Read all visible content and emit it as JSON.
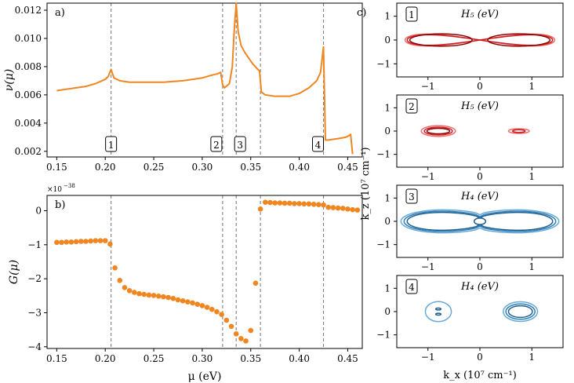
{
  "colors": {
    "orange": "#f0861f",
    "red_dark": "#8b0000",
    "red_mid": "#cc1f24",
    "red_light": "#ef6b6b",
    "blue_dark": "#1f5f8f",
    "blue_mid": "#2f7fb8",
    "blue_light": "#6aaad6",
    "dashed": "#808080"
  },
  "chart_data": [
    {
      "id": "a",
      "panel_label": "a)",
      "type": "line",
      "xlabel": "",
      "ylabel": "ν(μ)",
      "xlim": [
        0.14,
        0.465
      ],
      "ylim": [
        0.0016,
        0.0125
      ],
      "xticks": [
        0.15,
        0.2,
        0.25,
        0.3,
        0.35,
        0.4,
        0.45
      ],
      "xtick_labels": [
        "0.15",
        "0.20",
        "0.25",
        "0.30",
        "0.35",
        "0.40",
        "0.45"
      ],
      "yticks": [
        0.002,
        0.004,
        0.006,
        0.008,
        0.01,
        0.012
      ],
      "ytick_labels": [
        "0.002",
        "0.004",
        "0.006",
        "0.008",
        "0.010",
        "0.012"
      ],
      "vlines": [
        0.206,
        0.321,
        0.335,
        0.36,
        0.425
      ],
      "markers": [
        {
          "label": "1",
          "x": 0.206
        },
        {
          "label": "2",
          "x": 0.321
        },
        {
          "label": "3",
          "x": 0.335
        },
        {
          "label": "4",
          "x": 0.425
        }
      ],
      "series": [
        {
          "name": "nu",
          "x": [
            0.15,
            0.16,
            0.17,
            0.18,
            0.19,
            0.2,
            0.203,
            0.206,
            0.209,
            0.215,
            0.225,
            0.24,
            0.26,
            0.28,
            0.3,
            0.31,
            0.316,
            0.319,
            0.321,
            0.323,
            0.328,
            0.331,
            0.333,
            0.335,
            0.337,
            0.34,
            0.344,
            0.348,
            0.352,
            0.356,
            0.359,
            0.361,
            0.365,
            0.375,
            0.39,
            0.4,
            0.41,
            0.418,
            0.422,
            0.424,
            0.425,
            0.427,
            0.43,
            0.44,
            0.448,
            0.451,
            0.453,
            0.455
          ],
          "y": [
            0.0063,
            0.0064,
            0.0065,
            0.0066,
            0.0068,
            0.0071,
            0.0073,
            0.0078,
            0.0072,
            0.007,
            0.0069,
            0.0069,
            0.0069,
            0.007,
            0.0072,
            0.0074,
            0.0075,
            0.0076,
            0.0067,
            0.0065,
            0.0068,
            0.008,
            0.0106,
            0.0125,
            0.0105,
            0.0095,
            0.009,
            0.0086,
            0.0082,
            0.0079,
            0.0077,
            0.0062,
            0.006,
            0.0059,
            0.0059,
            0.0061,
            0.0065,
            0.007,
            0.0076,
            0.0088,
            0.0094,
            0.0028,
            0.0028,
            0.0029,
            0.003,
            0.0031,
            0.0032,
            0.0018
          ]
        }
      ]
    },
    {
      "id": "b",
      "panel_label": "b)",
      "type": "scatter",
      "xlabel": "μ (eV)",
      "ylabel": "G(μ)",
      "scale_label": "×10",
      "scale_exp": "−38",
      "xlim": [
        0.14,
        0.465
      ],
      "ylim": [
        -4.05,
        0.45
      ],
      "xticks": [
        0.15,
        0.2,
        0.25,
        0.3,
        0.35,
        0.4,
        0.45
      ],
      "xtick_labels": [
        "0.15",
        "0.20",
        "0.25",
        "0.30",
        "0.35",
        "0.40",
        "0.45"
      ],
      "yticks": [
        0,
        -1,
        -2,
        -3,
        -4
      ],
      "ytick_labels": [
        "0",
        "−1",
        "−2",
        "−3",
        "−4"
      ],
      "vlines": [
        0.206,
        0.321,
        0.335,
        0.36,
        0.425
      ],
      "series": [
        {
          "name": "G",
          "x": [
            0.15,
            0.155,
            0.16,
            0.165,
            0.17,
            0.175,
            0.18,
            0.185,
            0.19,
            0.195,
            0.2,
            0.205,
            0.21,
            0.215,
            0.22,
            0.225,
            0.23,
            0.235,
            0.24,
            0.245,
            0.25,
            0.255,
            0.26,
            0.265,
            0.27,
            0.275,
            0.28,
            0.285,
            0.29,
            0.295,
            0.3,
            0.305,
            0.31,
            0.315,
            0.32,
            0.325,
            0.33,
            0.335,
            0.34,
            0.345,
            0.35,
            0.355,
            0.36,
            0.365,
            0.37,
            0.375,
            0.38,
            0.385,
            0.39,
            0.395,
            0.4,
            0.405,
            0.41,
            0.415,
            0.42,
            0.425,
            0.43,
            0.435,
            0.44,
            0.445,
            0.45,
            0.455,
            0.46
          ],
          "y": [
            -0.93,
            -0.93,
            -0.92,
            -0.92,
            -0.91,
            -0.9,
            -0.9,
            -0.89,
            -0.88,
            -0.88,
            -0.88,
            -0.98,
            -1.68,
            -2.05,
            -2.26,
            -2.35,
            -2.4,
            -2.44,
            -2.46,
            -2.48,
            -2.49,
            -2.51,
            -2.53,
            -2.55,
            -2.58,
            -2.62,
            -2.65,
            -2.68,
            -2.71,
            -2.75,
            -2.79,
            -2.84,
            -2.9,
            -2.97,
            -3.05,
            -3.22,
            -3.4,
            -3.62,
            -3.76,
            -3.83,
            -3.52,
            -2.13,
            0.05,
            0.25,
            0.24,
            0.23,
            0.23,
            0.22,
            0.22,
            0.21,
            0.21,
            0.2,
            0.2,
            0.19,
            0.18,
            0.17,
            0.1,
            0.09,
            0.08,
            0.07,
            0.05,
            0.03,
            0.02
          ]
        }
      ]
    },
    {
      "id": "c1",
      "panel_label": "c)",
      "type": "contour",
      "number": "1",
      "title": "H₅ (eV)",
      "xlim": [
        -1.6,
        1.6
      ],
      "ylim": [
        -1.55,
        1.55
      ],
      "xticks": [
        -1,
        0,
        1
      ],
      "xtick_labels": [
        "−1",
        "0",
        "1"
      ],
      "yticks": [
        1,
        0,
        -1
      ],
      "ytick_labels": [
        "1",
        "0",
        "−1"
      ],
      "colormap": "reds",
      "contours": [
        {
          "kind": "figure8",
          "a": 1.44,
          "b": 0.5,
          "level": "outer"
        },
        {
          "kind": "figure8",
          "a": 1.4,
          "b": 0.44,
          "level": "mid"
        },
        {
          "kind": "lobes",
          "cx": 0.75,
          "rx": 0.6,
          "ry": 0.26,
          "level": "inner"
        }
      ]
    },
    {
      "id": "c2",
      "type": "contour",
      "number": "2",
      "title": "H₅ (eV)",
      "xlim": [
        -1.6,
        1.6
      ],
      "ylim": [
        -1.55,
        1.55
      ],
      "xticks": [
        -1,
        0,
        1
      ],
      "xtick_labels": [
        "−1",
        "0",
        "1"
      ],
      "yticks": [
        1,
        0,
        -1
      ],
      "ytick_labels": [
        "1",
        "0",
        "−1"
      ],
      "colormap": "reds",
      "contours": [
        {
          "kind": "ellipse",
          "cx": -0.8,
          "cy": 0,
          "rx": 0.33,
          "ry": 0.23,
          "level": "outer"
        },
        {
          "kind": "ellipse",
          "cx": -0.8,
          "cy": 0,
          "rx": 0.27,
          "ry": 0.17,
          "level": "mid"
        },
        {
          "kind": "ellipse",
          "cx": -0.8,
          "cy": 0,
          "rx": 0.22,
          "ry": 0.12,
          "level": "inner"
        },
        {
          "kind": "ellipse",
          "cx": 0.75,
          "cy": 0,
          "rx": 0.2,
          "ry": 0.1,
          "level": "outer"
        },
        {
          "kind": "ellipse",
          "cx": 0.75,
          "cy": 0,
          "rx": 0.12,
          "ry": 0.06,
          "level": "mid"
        }
      ]
    },
    {
      "id": "c3",
      "type": "contour",
      "number": "3",
      "title": "H₄ (eV)",
      "xlim": [
        -1.6,
        1.6
      ],
      "ylim": [
        -1.55,
        1.55
      ],
      "xticks": [
        -1,
        0,
        1
      ],
      "xtick_labels": [
        "−1",
        "0",
        "1"
      ],
      "yticks": [
        1,
        0,
        -1
      ],
      "ytick_labels": [
        "1",
        "0",
        "−1"
      ],
      "ylabel": "k_z (10⁷ cm⁻¹)",
      "colormap": "blues",
      "contours": [
        {
          "kind": "peanut",
          "a": 1.52,
          "b": 0.7,
          "neck": 0.28,
          "level": "outer"
        },
        {
          "kind": "peanut",
          "a": 1.46,
          "b": 0.64,
          "neck": 0.2,
          "level": "mid"
        },
        {
          "kind": "peanut",
          "a": 1.4,
          "b": 0.58,
          "neck": 0.14,
          "level": "inner"
        },
        {
          "kind": "ellipse",
          "cx": 0,
          "cy": 0,
          "rx": 0.11,
          "ry": 0.14,
          "level": "inner"
        }
      ]
    },
    {
      "id": "c4",
      "type": "contour",
      "number": "4",
      "title": "H₄ (eV)",
      "xlim": [
        -1.6,
        1.6
      ],
      "ylim": [
        -1.55,
        1.55
      ],
      "xticks": [
        -1,
        0,
        1
      ],
      "xtick_labels": [
        "−1",
        "0",
        "1"
      ],
      "yticks": [
        1,
        0,
        -1
      ],
      "ytick_labels": [
        "1",
        "0",
        "−1"
      ],
      "xlabel": "k_x (10⁷ cm⁻¹)",
      "colormap": "blues",
      "contours": [
        {
          "kind": "ellipse",
          "cx": 0.78,
          "cy": 0,
          "rx": 0.33,
          "ry": 0.42,
          "level": "outer"
        },
        {
          "kind": "ellipse",
          "cx": 0.78,
          "cy": 0,
          "rx": 0.28,
          "ry": 0.33,
          "level": "mid"
        },
        {
          "kind": "ellipse",
          "cx": 0.78,
          "cy": 0,
          "rx": 0.23,
          "ry": 0.25,
          "level": "inner"
        },
        {
          "kind": "ellipse",
          "cx": -0.8,
          "cy": 0,
          "rx": 0.25,
          "ry": 0.43,
          "level": "outer"
        },
        {
          "kind": "ellipse",
          "cx": -0.8,
          "cy": 0.11,
          "rx": 0.05,
          "ry": 0.04,
          "level": "inner"
        },
        {
          "kind": "ellipse",
          "cx": -0.8,
          "cy": -0.11,
          "rx": 0.05,
          "ry": 0.04,
          "level": "inner"
        }
      ]
    }
  ]
}
